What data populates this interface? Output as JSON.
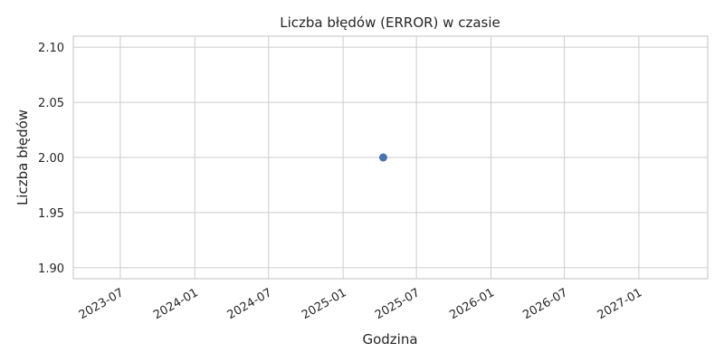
{
  "chart_data": {
    "type": "scatter",
    "title": "Liczba błędów (ERROR) w czasie",
    "xlabel": "Godzina",
    "ylabel": "Liczba błędów",
    "x_type": "date",
    "xlim": [
      "2023-03-07",
      "2027-06-20"
    ],
    "ylim": [
      1.89,
      2.11
    ],
    "x_ticks": [
      "2023-07",
      "2024-01",
      "2024-07",
      "2025-01",
      "2025-07",
      "2026-01",
      "2026-07",
      "2027-01"
    ],
    "y_ticks": [
      "1.90",
      "1.95",
      "2.00",
      "2.05",
      "2.10"
    ],
    "grid": true,
    "series": [
      {
        "color": "#4c72b0",
        "points": [
          {
            "x": "2025-04-10",
            "y": 2.0
          }
        ]
      }
    ]
  }
}
